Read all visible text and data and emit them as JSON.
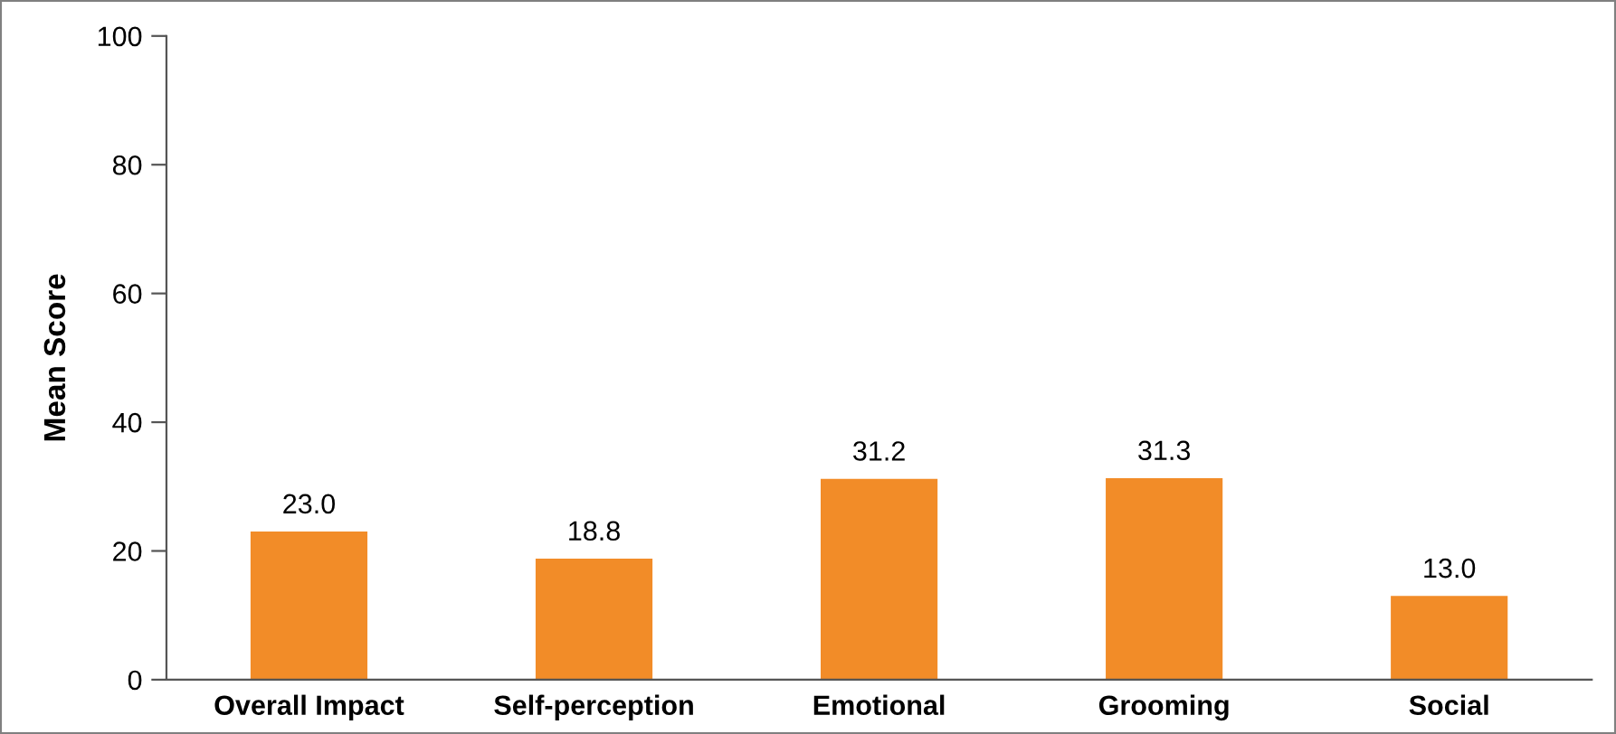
{
  "chart_data": {
    "type": "bar",
    "ylabel": "Mean Score",
    "categories": [
      "Overall Impact",
      "Self-perception",
      "Emotional",
      "Grooming",
      "Social"
    ],
    "values": [
      23.0,
      18.8,
      31.2,
      31.3,
      13.0
    ],
    "value_labels": [
      "23.0",
      "18.8",
      "31.2",
      "31.3",
      "13.0"
    ],
    "color": "#f28c28",
    "ylim": [
      0,
      100
    ],
    "yticks": [
      0,
      20,
      40,
      60,
      80,
      100
    ],
    "grid": false
  }
}
